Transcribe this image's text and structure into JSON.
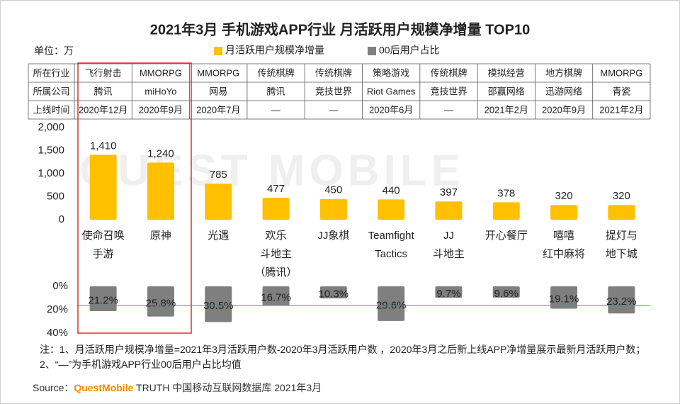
{
  "title": "2021年3月 手机游戏APP行业 月活跃用户规模净增量 TOP10",
  "unit": "单位：万",
  "watermark": "QUEST MOBILE",
  "table": {
    "rows": [
      {
        "header": "所在行业",
        "cells": [
          "飞行射击",
          "MMORPG",
          "MMORPG",
          "传统棋牌",
          "传统棋牌",
          "策略游戏",
          "传统棋牌",
          "模拟经营",
          "地方棋牌",
          "MMORPG"
        ]
      },
      {
        "header": "所属公司",
        "cells": [
          "腾讯",
          "miHoYo",
          "网易",
          "腾讯",
          "竞技世界",
          "Riot Games",
          "竞技世界",
          "邵赢网络",
          "迅游网络",
          "青瓷"
        ]
      },
      {
        "header": "上线时间",
        "cells": [
          "2020年12月",
          "2020年9月",
          "2020年7月",
          "—",
          "—",
          "2020年6月",
          "—",
          "2021年2月",
          "2020年9月",
          "2021年2月"
        ]
      }
    ]
  },
  "chart_data": [
    {
      "type": "bar",
      "categories": [
        "使命召唤\n手游",
        "原神",
        "光遇",
        "欢乐\n斗地主\n（腾讯）",
        "JJ象棋",
        "Teamfight\nTactics",
        "JJ\n斗地主",
        "开心餐厅",
        "嘻嘻\n红中麻将",
        "提灯与\n地下城"
      ],
      "series": [
        {
          "name": "月活跃用户规模净增量",
          "color": "#ffc000",
          "values": [
            1410,
            1240,
            785,
            477,
            450,
            440,
            397,
            378,
            320,
            320
          ],
          "value_labels": [
            "1,410",
            "1,240",
            "785",
            "477",
            "450",
            "440",
            "397",
            "378",
            "320",
            "320"
          ]
        }
      ],
      "ylim": [
        0,
        2000
      ],
      "yticks": [
        0,
        500,
        {
          "value": 1000,
          "label": "1,000"
        },
        {
          "value": 1500,
          "label": "1,500"
        },
        {
          "value": 2000,
          "label": "2,000"
        }
      ]
    },
    {
      "type": "bar",
      "inverted": true,
      "series": [
        {
          "name": "00后用户占比",
          "color": "#7f7f7f",
          "values": [
            21.2,
            25.8,
            30.5,
            16.7,
            10.3,
            29.6,
            9.7,
            9.6,
            19.1,
            23.2
          ],
          "value_labels": [
            "21.2%",
            "25.8%",
            "30.5%",
            "16.7%",
            "10.3%",
            "29.6%",
            "9.7%",
            "9.6%",
            "19.1%",
            "23.2%"
          ]
        }
      ],
      "ylim": [
        0,
        40
      ],
      "yticks": [
        {
          "value": 0,
          "label": "0%"
        },
        {
          "value": 20,
          "label": "20%"
        },
        {
          "value": 40,
          "label": "40%"
        }
      ],
      "reference_line": {
        "value": 16.4,
        "color": "#e8503a"
      }
    }
  ],
  "note": "注：1、月活跃用户规模净增量=2021年3月活跃用户数-2020年3月活跃用户数 ，2020年3月之后新上线APP净增量展示最新月活跃用户数；2、“—”为手机游戏APP行业00后用户占比均值",
  "source": {
    "prefix": "Source：",
    "brand": "QuestMobile",
    "rest": " TRUTH 中国移动互联网数据库 2021年3月"
  }
}
